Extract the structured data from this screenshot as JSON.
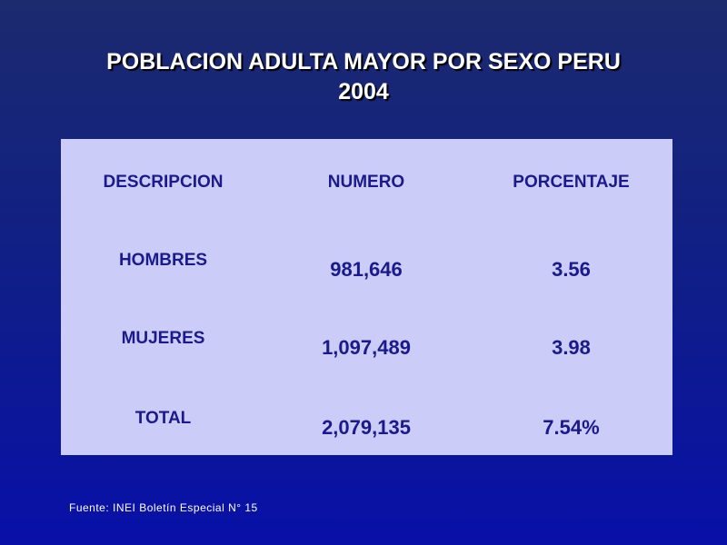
{
  "slide": {
    "title_line1": "POBLACION ADULTA MAYOR POR SEXO PERU",
    "title_line2": "2004",
    "source": "Fuente: INEI Boletín Especial  N° 15"
  },
  "table": {
    "headers": [
      "DESCRIPCION",
      "NUMERO",
      "PORCENTAJE"
    ],
    "rows": [
      [
        "HOMBRES",
        "981,646",
        "3.56"
      ],
      [
        "MUJERES",
        "1,097,489",
        "3.98"
      ],
      [
        "TOTAL",
        "2,079,135",
        "7.54%"
      ]
    ]
  },
  "colors": {
    "background_top": "#1c2a6e",
    "background_bottom": "#0810a8",
    "panel": "#ccccf8",
    "table_text": "#1a1a8c",
    "title_text": "#ffffff"
  }
}
